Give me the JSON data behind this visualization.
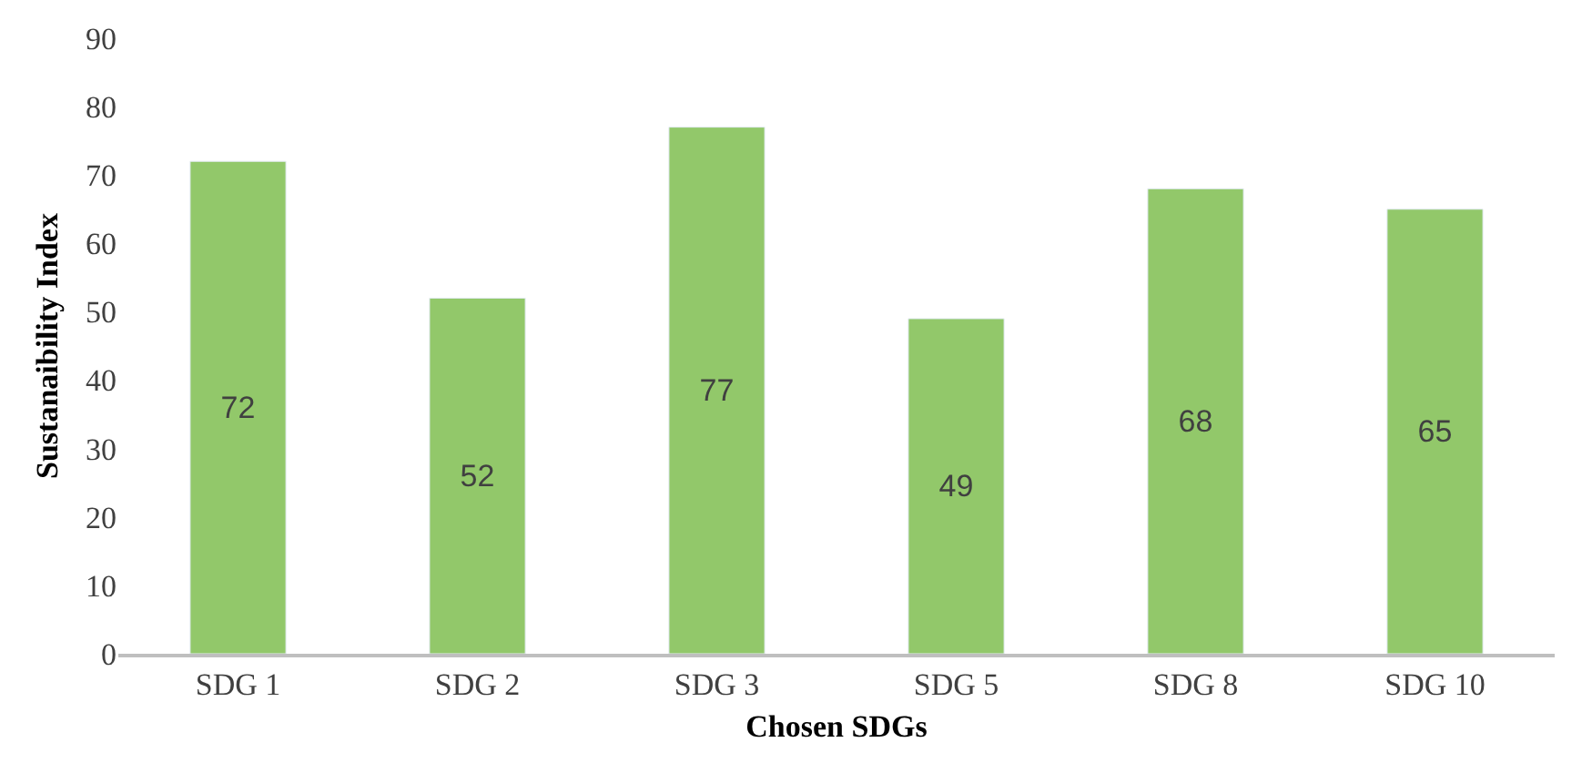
{
  "chart_data": {
    "type": "bar",
    "xlabel": "Chosen SDGs",
    "ylabel": "Sustanaibility Index",
    "categories": [
      "SDG 1",
      "SDG 2",
      "SDG 3",
      "SDG 5",
      "SDG 8",
      "SDG 10"
    ],
    "values": [
      72,
      52,
      77,
      49,
      68,
      65
    ],
    "color": "#92c86a",
    "ylim": [
      0,
      90
    ],
    "yticks": [
      0,
      10,
      20,
      30,
      40,
      50,
      60,
      70,
      80,
      90
    ],
    "data_labels": true
  }
}
